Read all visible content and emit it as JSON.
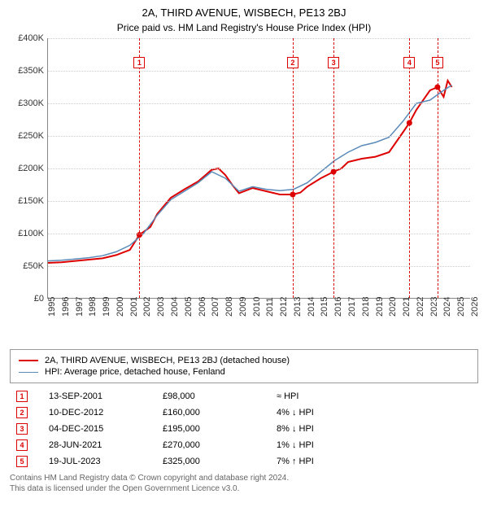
{
  "title": "2A, THIRD AVENUE, WISBECH, PE13 2BJ",
  "subtitle": "Price paid vs. HM Land Registry's House Price Index (HPI)",
  "chart": {
    "type": "line",
    "background_color": "#ffffff",
    "grid_color": "#cccccc",
    "axis_color": "#888888",
    "x_min": 1995,
    "x_max": 2026,
    "x_ticks": [
      1995,
      1996,
      1997,
      1998,
      1999,
      2000,
      2001,
      2002,
      2003,
      2004,
      2005,
      2006,
      2007,
      2008,
      2009,
      2010,
      2011,
      2012,
      2013,
      2014,
      2015,
      2016,
      2017,
      2018,
      2019,
      2020,
      2021,
      2022,
      2023,
      2024,
      2025,
      2026
    ],
    "y_min": 0,
    "y_max": 400000,
    "y_tick_step": 50000,
    "y_tick_labels": [
      "£0",
      "£50K",
      "£100K",
      "£150K",
      "£200K",
      "£250K",
      "£300K",
      "£350K",
      "£400K"
    ],
    "series": [
      {
        "name": "price_paid",
        "label": "2A, THIRD AVENUE, WISBECH, PE13 2BJ (detached house)",
        "color": "#dd0000",
        "line_width": 2,
        "points": [
          [
            1995.0,
            55000
          ],
          [
            1996.0,
            56000
          ],
          [
            1997.0,
            58000
          ],
          [
            1998.0,
            60000
          ],
          [
            1999.0,
            62000
          ],
          [
            2000.0,
            67000
          ],
          [
            2001.0,
            75000
          ],
          [
            2001.7,
            98000
          ],
          [
            2002.5,
            110000
          ],
          [
            2003.0,
            130000
          ],
          [
            2004.0,
            155000
          ],
          [
            2005.0,
            168000
          ],
          [
            2006.0,
            180000
          ],
          [
            2007.0,
            198000
          ],
          [
            2007.5,
            200000
          ],
          [
            2008.0,
            190000
          ],
          [
            2008.5,
            175000
          ],
          [
            2009.0,
            162000
          ],
          [
            2010.0,
            170000
          ],
          [
            2011.0,
            165000
          ],
          [
            2012.0,
            160000
          ],
          [
            2012.94,
            160000
          ],
          [
            2013.5,
            163000
          ],
          [
            2014.0,
            172000
          ],
          [
            2015.0,
            185000
          ],
          [
            2015.93,
            195000
          ],
          [
            2016.5,
            200000
          ],
          [
            2017.0,
            210000
          ],
          [
            2018.0,
            215000
          ],
          [
            2019.0,
            218000
          ],
          [
            2020.0,
            225000
          ],
          [
            2021.0,
            255000
          ],
          [
            2021.49,
            270000
          ],
          [
            2022.0,
            290000
          ],
          [
            2023.0,
            320000
          ],
          [
            2023.55,
            325000
          ],
          [
            2024.0,
            310000
          ],
          [
            2024.3,
            335000
          ],
          [
            2024.6,
            325000
          ]
        ]
      },
      {
        "name": "hpi",
        "label": "HPI: Average price, detached house, Fenland",
        "color": "#5b8bb8",
        "line_width": 1.5,
        "points": [
          [
            1995.0,
            58000
          ],
          [
            1996.0,
            59000
          ],
          [
            1997.0,
            61000
          ],
          [
            1998.0,
            63000
          ],
          [
            1999.0,
            66000
          ],
          [
            2000.0,
            72000
          ],
          [
            2001.0,
            82000
          ],
          [
            2002.0,
            100000
          ],
          [
            2003.0,
            128000
          ],
          [
            2004.0,
            152000
          ],
          [
            2005.0,
            165000
          ],
          [
            2006.0,
            178000
          ],
          [
            2007.0,
            195000
          ],
          [
            2008.0,
            185000
          ],
          [
            2009.0,
            165000
          ],
          [
            2010.0,
            172000
          ],
          [
            2011.0,
            168000
          ],
          [
            2012.0,
            166000
          ],
          [
            2013.0,
            168000
          ],
          [
            2014.0,
            178000
          ],
          [
            2015.0,
            195000
          ],
          [
            2016.0,
            212000
          ],
          [
            2017.0,
            225000
          ],
          [
            2018.0,
            235000
          ],
          [
            2019.0,
            240000
          ],
          [
            2020.0,
            248000
          ],
          [
            2021.0,
            272000
          ],
          [
            2022.0,
            300000
          ],
          [
            2023.0,
            305000
          ],
          [
            2024.0,
            320000
          ],
          [
            2024.6,
            328000
          ]
        ]
      }
    ],
    "sale_markers": [
      {
        "n": "1",
        "year": 2001.7,
        "price": 98000,
        "label_y": 362000
      },
      {
        "n": "2",
        "year": 2012.94,
        "price": 160000,
        "label_y": 362000
      },
      {
        "n": "3",
        "year": 2015.93,
        "price": 195000,
        "label_y": 362000
      },
      {
        "n": "4",
        "year": 2021.49,
        "price": 270000,
        "label_y": 362000
      },
      {
        "n": "5",
        "year": 2023.55,
        "price": 325000,
        "label_y": 362000
      }
    ],
    "dashed_color": "#dd0000"
  },
  "legend": {
    "items": [
      {
        "color": "#dd0000",
        "width": 2,
        "label": "2A, THIRD AVENUE, WISBECH, PE13 2BJ (detached house)"
      },
      {
        "color": "#5b8bb8",
        "width": 1.5,
        "label": "HPI: Average price, detached house, Fenland"
      }
    ]
  },
  "sales_table": {
    "rows": [
      {
        "n": "1",
        "date": "13-SEP-2001",
        "price": "£98,000",
        "diff": "≈ HPI"
      },
      {
        "n": "2",
        "date": "10-DEC-2012",
        "price": "£160,000",
        "diff": "4% ↓ HPI"
      },
      {
        "n": "3",
        "date": "04-DEC-2015",
        "price": "£195,000",
        "diff": "8% ↓ HPI"
      },
      {
        "n": "4",
        "date": "28-JUN-2021",
        "price": "£270,000",
        "diff": "1% ↓ HPI"
      },
      {
        "n": "5",
        "date": "19-JUL-2023",
        "price": "£325,000",
        "diff": "7% ↑ HPI"
      }
    ]
  },
  "footer": {
    "line1": "Contains HM Land Registry data © Crown copyright and database right 2024.",
    "line2": "This data is licensed under the Open Government Licence v3.0."
  }
}
